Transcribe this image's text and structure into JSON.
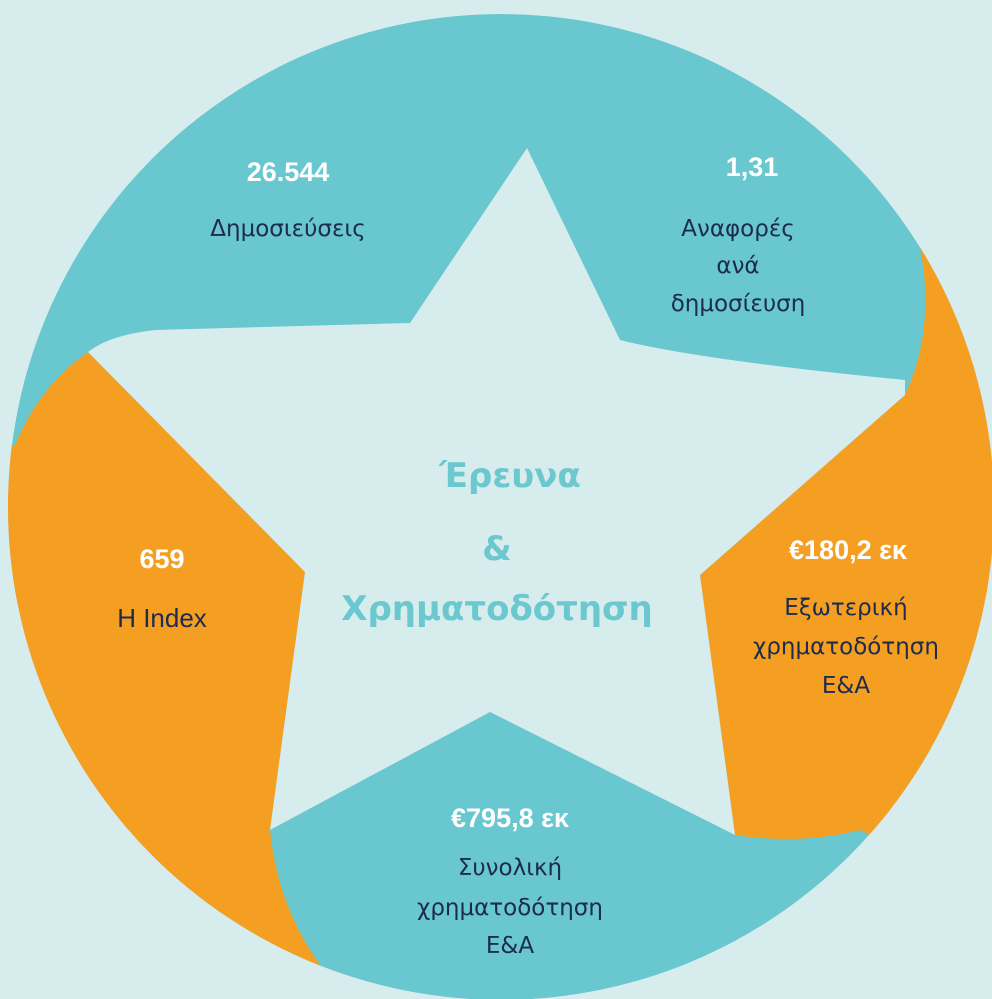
{
  "center": {
    "lines": [
      "Έρευνα",
      "&",
      "Χρηματοδότηση"
    ]
  },
  "segments": [
    {
      "value": "26.544",
      "label": [
        "Δημοσιεύσεις"
      ]
    },
    {
      "value": "1,31",
      "label": [
        "Αναφορές",
        "ανά",
        "δημοσίευση"
      ]
    },
    {
      "value": "€180,2 εκ",
      "label": [
        "Εξωτερική",
        "χρηματοδότηση",
        "Ε&Α"
      ]
    },
    {
      "value": "€795,8 εκ",
      "label": [
        "Συνολική",
        "χρηματοδότηση",
        "Ε&Α"
      ]
    },
    {
      "value": "659",
      "label": [
        "H Index"
      ]
    }
  ]
}
